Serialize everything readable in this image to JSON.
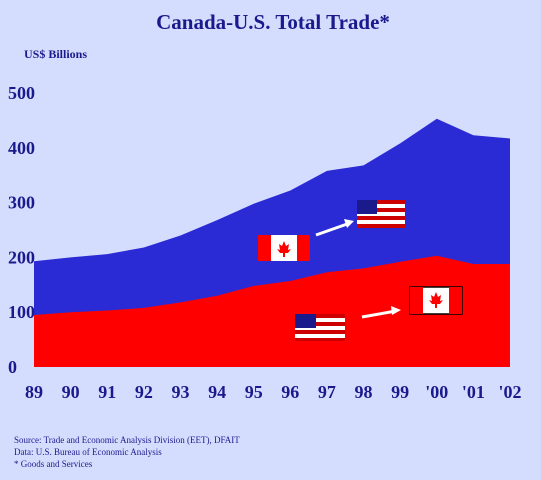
{
  "chart_data": {
    "type": "area",
    "title": "Canada-U.S. Total Trade*",
    "ylabel": "US$ Billions",
    "categories": [
      "89",
      "90",
      "91",
      "92",
      "93",
      "94",
      "95",
      "96",
      "97",
      "98",
      "99",
      "'00",
      "'01",
      "'02"
    ],
    "yticks": [
      0,
      100,
      200,
      300,
      400,
      500
    ],
    "ylim": [
      0,
      500
    ],
    "series": [
      {
        "color": "#ff0000",
        "values": [
          95,
          100,
          103,
          108,
          118,
          130,
          148,
          157,
          173,
          180,
          192,
          203,
          188,
          188
        ]
      },
      {
        "color": "#2b2bd6",
        "values": [
          193,
          200,
          206,
          218,
          240,
          268,
          298,
          322,
          358,
          368,
          408,
          453,
          423,
          417
        ]
      }
    ],
    "grid": false
  },
  "annotations": {
    "flag_red_maple": "maple-leaf-flag-icon",
    "flag_stars_stripes": "stars-and-stripes-flag-icon"
  },
  "footnotes": {
    "source": "Source: Trade and Economic Analysis Division (EET), DFAIT",
    "data": "Data: U.S. Bureau of Economic Analysis",
    "note": "* Goods and Services"
  },
  "colors": {
    "background": "#d5ddff",
    "text": "#1a1a8c"
  }
}
